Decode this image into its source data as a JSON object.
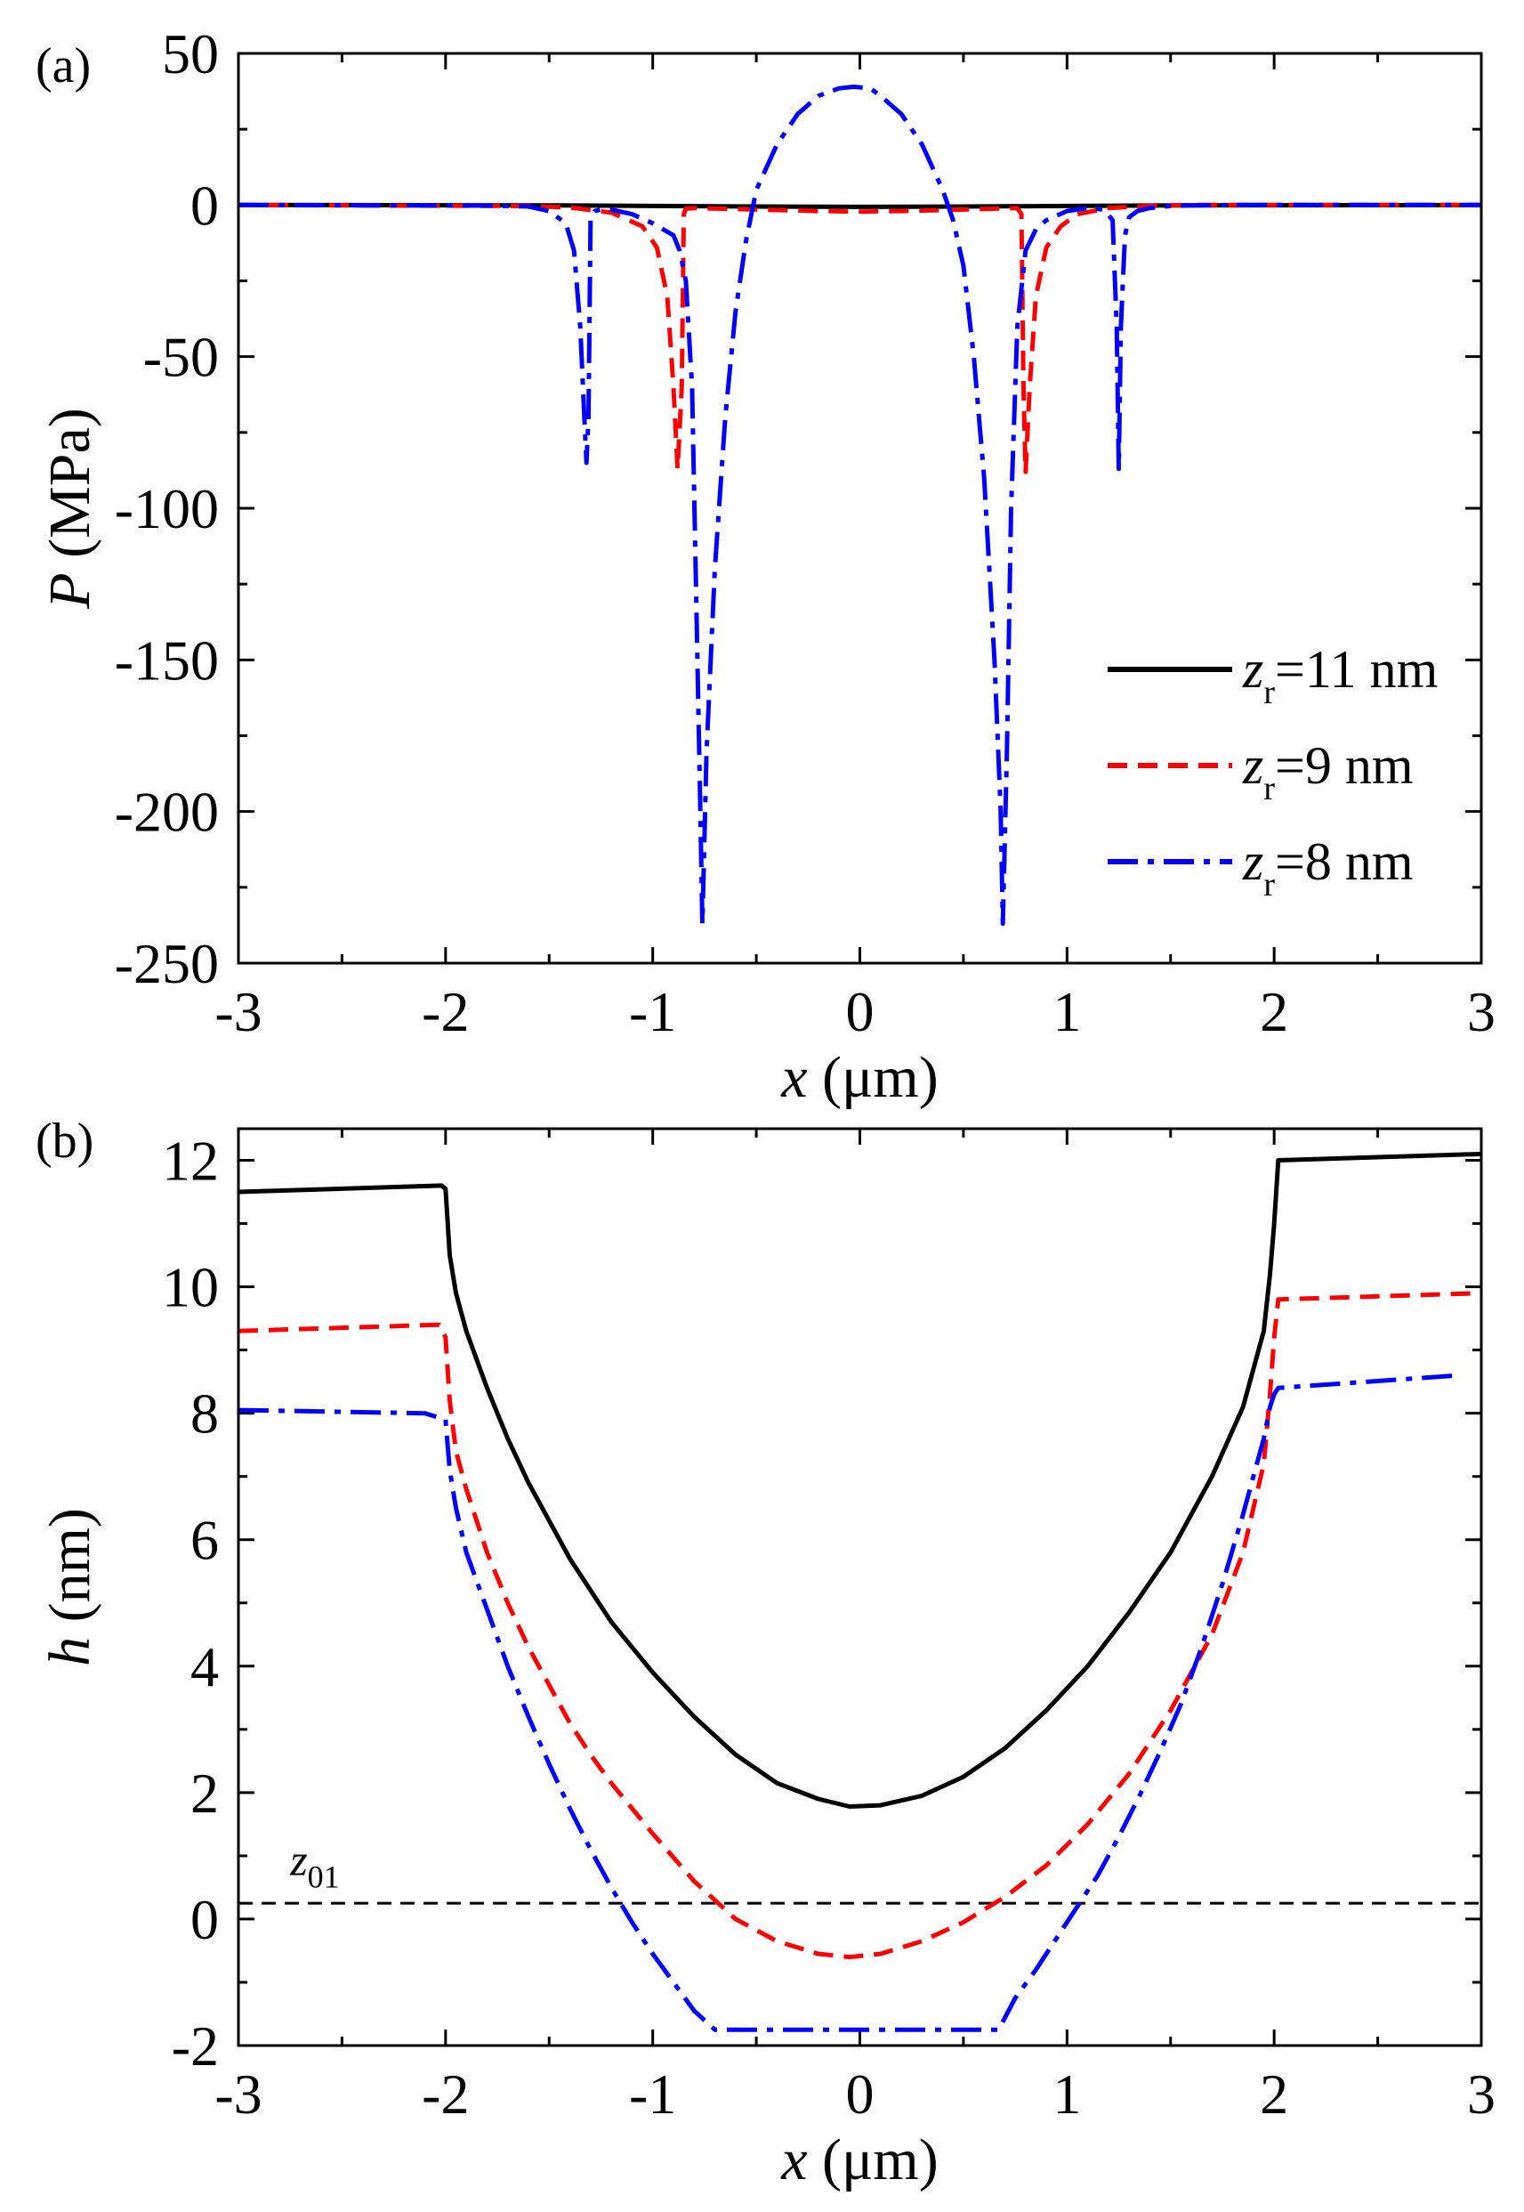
{
  "chart_data": [
    {
      "panel_label": "(a)",
      "type": "line",
      "xlabel": "x (μm)",
      "ylabel": "P (MPa)",
      "xlim": [
        -3,
        3
      ],
      "ylim": [
        -250,
        50
      ],
      "xticks": [
        "-3",
        "-2",
        "-1",
        "0",
        "1",
        "2",
        "3"
      ],
      "yticks": [
        "50",
        "0",
        "-50",
        "-100",
        "-150",
        "-200",
        "-250"
      ],
      "legend": {
        "position": "bottom-right"
      },
      "series": [
        {
          "name": "zr=11 nm",
          "name_parts": {
            "var": "z",
            "sub": "r",
            "rest": "=11 nm"
          },
          "color": "#000000",
          "dash": "solid",
          "x": [
            -3,
            -1.5,
            -1.0,
            -0.5,
            0,
            0.5,
            1.0,
            1.5,
            3
          ],
          "y": [
            0,
            -0.1,
            -0.3,
            -0.5,
            -0.6,
            -0.5,
            -0.3,
            -0.1,
            0
          ]
        },
        {
          "name": "zr=9 nm",
          "name_parts": {
            "var": "z",
            "sub": "r",
            "rest": "=9 nm"
          },
          "color": "#ff0000",
          "dash": "dash",
          "x": [
            -3,
            -1.6,
            -1.4,
            -1.2,
            -1.05,
            -0.98,
            -0.93,
            -0.9,
            -0.88,
            -0.86,
            -0.85,
            -0.84,
            -0.8,
            -0.5,
            -0.2,
            0,
            0.2,
            0.5,
            0.76,
            0.78,
            0.79,
            0.8,
            0.82,
            0.85,
            0.9,
            0.97,
            1.05,
            1.2,
            1.4,
            1.6,
            3
          ],
          "y": [
            0,
            -0.3,
            -0.8,
            -2.5,
            -7,
            -14,
            -30,
            -60,
            -87,
            -60,
            -3,
            -1.2,
            -1,
            -1.5,
            -2,
            -2.2,
            -2,
            -1.5,
            -1,
            -3,
            -60,
            -88,
            -60,
            -30,
            -14,
            -7,
            -3,
            -1,
            -0.3,
            0,
            0
          ]
        },
        {
          "name": "zr=8 nm",
          "name_parts": {
            "var": "z",
            "sub": "r",
            "rest": "=8 nm"
          },
          "color": "#0000ff",
          "dash": "dashdot",
          "x": [
            -3,
            -1.8,
            -1.6,
            -1.5,
            -1.42,
            -1.38,
            -1.35,
            -1.33,
            -1.32,
            -1.31,
            -1.3,
            -1.28,
            -1.25,
            -1.2,
            -1.1,
            -1.0,
            -0.9,
            -0.87,
            -0.84,
            -0.81,
            -0.79,
            -0.77,
            -0.76,
            -0.74,
            -0.7,
            -0.65,
            -0.6,
            -0.55,
            -0.5,
            -0.4,
            -0.3,
            -0.2,
            -0.1,
            -0.03,
            0.05,
            0.1,
            0.2,
            0.3,
            0.4,
            0.45,
            0.5,
            0.55,
            0.6,
            0.65,
            0.68,
            0.69,
            0.71,
            0.73,
            0.76,
            0.8,
            0.85,
            0.9,
            1.0,
            1.1,
            1.18,
            1.22,
            1.24,
            1.25,
            1.26,
            1.28,
            1.3,
            1.34,
            1.4,
            1.5,
            1.6,
            1.8,
            3
          ],
          "y": [
            0,
            -0.2,
            -0.5,
            -2,
            -6,
            -15,
            -40,
            -70,
            -85,
            -70,
            -5,
            -2,
            -1.5,
            -1.5,
            -3,
            -6,
            -10,
            -15,
            -25,
            -60,
            -130,
            -200,
            -237,
            -180,
            -120,
            -70,
            -35,
            -12,
            5,
            20,
            30,
            36,
            38.5,
            39,
            38.5,
            36,
            30,
            20,
            5,
            -5,
            -20,
            -50,
            -90,
            -150,
            -200,
            -237,
            -180,
            -100,
            -40,
            -15,
            -8,
            -5,
            -2,
            -1,
            -1.5,
            -5,
            -40,
            -87,
            -40,
            -10,
            -4,
            -2,
            -1,
            -0.3,
            -0.1,
            0,
            0
          ]
        }
      ]
    },
    {
      "panel_label": "(b)",
      "type": "line",
      "xlabel": "x (μm)",
      "ylabel": "h (nm)",
      "xlim": [
        -3,
        3
      ],
      "ylim": [
        -2,
        12.5
      ],
      "xticks": [
        "-3",
        "-2",
        "-1",
        "0",
        "1",
        "2",
        "3"
      ],
      "yticks": [
        "12",
        "10",
        "8",
        "6",
        "4",
        "2",
        "0",
        "-2"
      ],
      "annotation": {
        "text_main": "z",
        "text_sub": "01",
        "text": "z01",
        "x": -2.75,
        "y": 0.3
      },
      "reference_line": {
        "y": 0.25,
        "style": "dash",
        "color": "#000000"
      },
      "series": [
        {
          "name": "zr=11 nm",
          "color": "#000000",
          "dash": "solid",
          "x": [
            -3,
            -2.02,
            -2.0,
            -1.98,
            -1.95,
            -1.9,
            -1.8,
            -1.7,
            -1.6,
            -1.5,
            -1.4,
            -1.3,
            -1.2,
            -1.0,
            -0.8,
            -0.6,
            -0.4,
            -0.2,
            -0.05,
            0.1,
            0.3,
            0.5,
            0.7,
            0.9,
            1.1,
            1.3,
            1.5,
            1.7,
            1.85,
            1.95,
            1.98,
            2.0,
            2.02,
            3
          ],
          "y": [
            11.5,
            11.6,
            11.55,
            10.5,
            9.9,
            9.3,
            8.4,
            7.6,
            6.9,
            6.3,
            5.7,
            5.2,
            4.7,
            3.9,
            3.2,
            2.6,
            2.15,
            1.9,
            1.78,
            1.8,
            1.95,
            2.25,
            2.7,
            3.3,
            4.0,
            4.85,
            5.8,
            7.0,
            8.1,
            9.3,
            10.2,
            11.0,
            12.0,
            12.1
          ]
        },
        {
          "name": "zr=9 nm",
          "color": "#ff0000",
          "dash": "dash",
          "x": [
            -3,
            -2.03,
            -2.0,
            -1.98,
            -1.95,
            -1.9,
            -1.8,
            -1.7,
            -1.6,
            -1.5,
            -1.4,
            -1.3,
            -1.2,
            -1.0,
            -0.8,
            -0.6,
            -0.4,
            -0.2,
            -0.05,
            0.1,
            0.3,
            0.5,
            0.7,
            0.9,
            1.1,
            1.3,
            1.5,
            1.7,
            1.85,
            1.95,
            1.98,
            2.0,
            2.02,
            3
          ],
          "y": [
            9.3,
            9.4,
            9.2,
            8.2,
            7.4,
            6.8,
            5.8,
            5.0,
            4.3,
            3.7,
            3.1,
            2.6,
            2.15,
            1.35,
            0.6,
            0.0,
            -0.35,
            -0.55,
            -0.6,
            -0.55,
            -0.35,
            -0.05,
            0.35,
            0.85,
            1.5,
            2.3,
            3.3,
            4.5,
            5.8,
            7.2,
            8.3,
            9.2,
            9.8,
            9.9
          ]
        },
        {
          "name": "zr=8 nm",
          "color": "#0000ff",
          "dash": "dashdot",
          "x": [
            -3,
            -2.1,
            -2.0,
            -1.98,
            -1.95,
            -1.9,
            -1.8,
            -1.7,
            -1.6,
            -1.5,
            -1.4,
            -1.3,
            -1.2,
            -1.1,
            -1.0,
            -0.9,
            -0.8,
            -0.7,
            0.0,
            0.67,
            0.75,
            0.85,
            0.95,
            1.05,
            1.15,
            1.25,
            1.35,
            1.45,
            1.55,
            1.65,
            1.75,
            1.85,
            1.95,
            1.98,
            2.0,
            2.02,
            2.9
          ],
          "y": [
            8.05,
            8.0,
            7.9,
            7.1,
            6.5,
            5.8,
            4.9,
            4.0,
            3.2,
            2.45,
            1.75,
            1.1,
            0.5,
            -0.05,
            -0.55,
            -1.0,
            -1.45,
            -1.75,
            -1.75,
            -1.75,
            -1.25,
            -0.8,
            -0.3,
            0.2,
            0.7,
            1.3,
            1.95,
            2.65,
            3.4,
            4.3,
            5.3,
            6.4,
            7.6,
            8.1,
            8.3,
            8.4,
            8.6
          ]
        }
      ]
    }
  ]
}
